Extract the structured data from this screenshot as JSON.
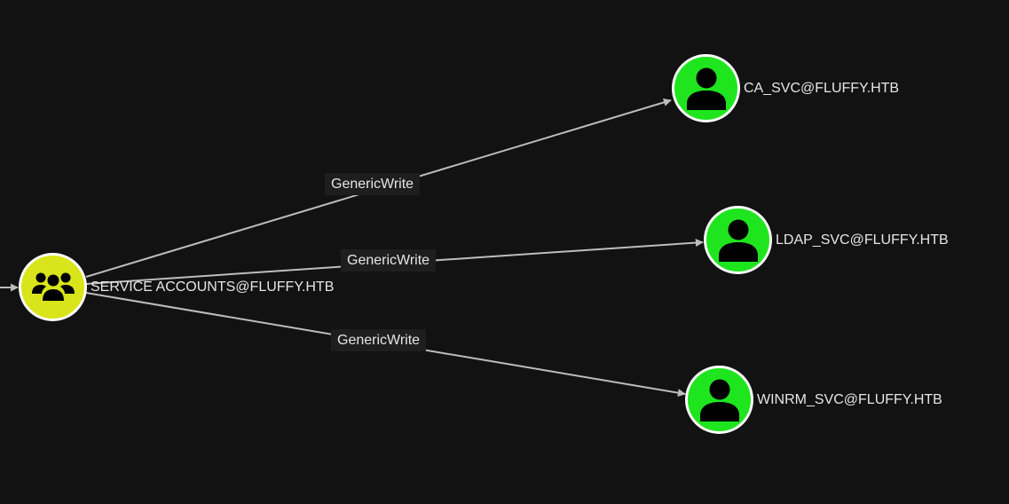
{
  "colors": {
    "background": "#121212",
    "group_node": "#d7e51a",
    "user_node": "#1fe51f",
    "node_border": "#ffffff",
    "edge": "#bdbdbd",
    "label_text": "#e6e6e6",
    "edge_label_bg": "#1e1e1e"
  },
  "nodes": {
    "service_accounts": {
      "label": "SERVICE ACCOUNTS@FLUFFY.HTB",
      "type": "group",
      "icon": "users-icon"
    },
    "ca_svc": {
      "label": "CA_SVC@FLUFFY.HTB",
      "type": "user",
      "icon": "user-icon"
    },
    "ldap_svc": {
      "label": "LDAP_SVC@FLUFFY.HTB",
      "type": "user",
      "icon": "user-icon"
    },
    "winrm_svc": {
      "label": "WINRM_SVC@FLUFFY.HTB",
      "type": "user",
      "icon": "user-icon"
    }
  },
  "edges": [
    {
      "from": "service_accounts",
      "to": "ca_svc",
      "label": "GenericWrite"
    },
    {
      "from": "service_accounts",
      "to": "ldap_svc",
      "label": "GenericWrite"
    },
    {
      "from": "service_accounts",
      "to": "winrm_svc",
      "label": "GenericWrite"
    }
  ]
}
